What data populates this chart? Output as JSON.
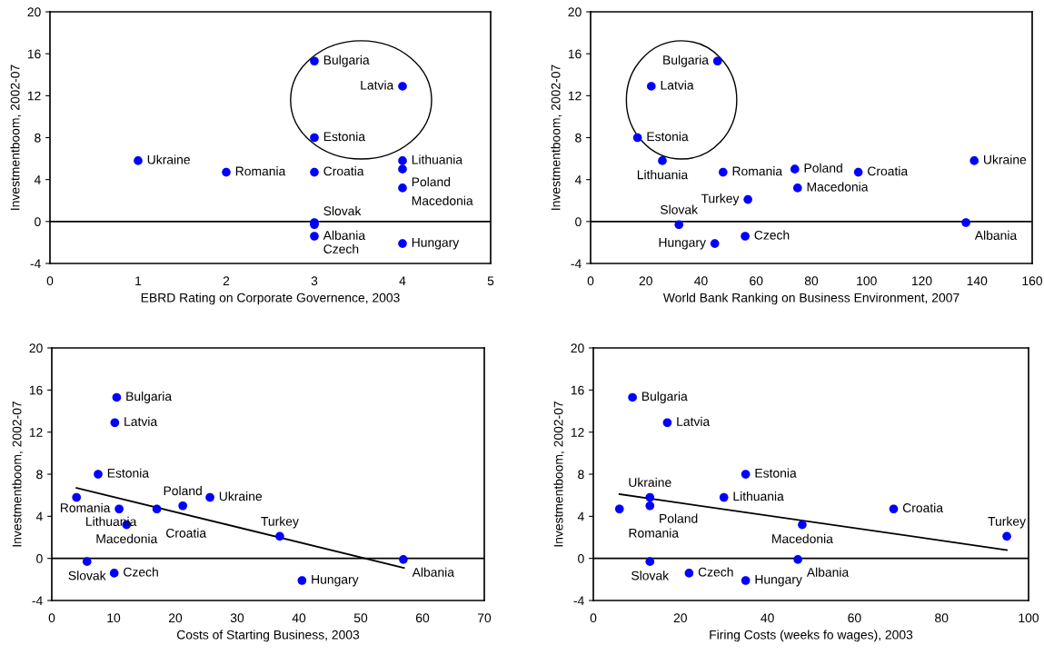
{
  "chart_data": [
    {
      "type": "scatter",
      "xlabel": "EBRD Rating on Corporate Governence, 2003",
      "ylabel": "Investmentboom, 2002-07",
      "x": [
        3,
        4,
        3,
        4,
        1,
        4,
        2,
        3,
        4,
        3,
        3,
        3,
        4
      ],
      "values": [
        15.3,
        12.9,
        8.0,
        5.8,
        5.8,
        5.0,
        4.7,
        4.7,
        3.2,
        -0.1,
        -0.3,
        -1.4,
        -2.1
      ],
      "color": "#0000ff",
      "marker": "circle",
      "annotations": [
        {
          "text": "Bulgaria",
          "x": 3,
          "y": 15.3
        },
        {
          "text": "Latvia",
          "x": 4,
          "y": 12.9
        },
        {
          "text": "Estonia",
          "x": 3,
          "y": 8.0
        },
        {
          "text": "Lithuania",
          "x": 4,
          "y": 5.8
        },
        {
          "text": "Ukraine",
          "x": 1,
          "y": 5.8
        },
        {
          "text": "Poland",
          "x": 4,
          "y": 5.0
        },
        {
          "text": "Romania",
          "x": 2,
          "y": 4.7
        },
        {
          "text": "Croatia",
          "x": 3,
          "y": 4.7
        },
        {
          "text": "Macedonia",
          "x": 4,
          "y": 3.2
        },
        {
          "text": "Albania",
          "x": 3,
          "y": -0.1
        },
        {
          "text": "Slovak",
          "x": 3,
          "y": -0.3
        },
        {
          "text": "Czech",
          "x": 3,
          "y": -1.4
        },
        {
          "text": "Hungary",
          "x": 4,
          "y": -2.1
        }
      ],
      "xlim": [
        0,
        5
      ],
      "xticks": [
        0,
        1,
        2,
        3,
        4,
        5
      ],
      "ylim": [
        -4,
        20
      ],
      "yticks": [
        -4,
        0,
        4,
        8,
        12,
        16,
        20
      ],
      "ref_lines": [
        {
          "axis": "y",
          "value": 0,
          "color": "#000000"
        }
      ],
      "grid": false,
      "legend": false
    },
    {
      "type": "scatter",
      "xlabel": "World Bank Ranking on Business Environment, 2007",
      "ylabel": "Investmentboom, 2002-07",
      "x": [
        46,
        22,
        17,
        26,
        139,
        74,
        48,
        97,
        75,
        57,
        136,
        32,
        56,
        45
      ],
      "values": [
        15.3,
        12.9,
        8.0,
        5.8,
        5.8,
        5.0,
        4.7,
        4.7,
        3.2,
        2.1,
        -0.1,
        -0.3,
        -1.4,
        -2.1
      ],
      "color": "#0000ff",
      "marker": "circle",
      "annotations": [
        {
          "text": "Bulgaria",
          "x": 46,
          "y": 15.3
        },
        {
          "text": "Latvia",
          "x": 22,
          "y": 12.9
        },
        {
          "text": "Estonia",
          "x": 17,
          "y": 8.0
        },
        {
          "text": "Lithuania",
          "x": 26,
          "y": 5.8
        },
        {
          "text": "Ukraine",
          "x": 139,
          "y": 5.8
        },
        {
          "text": "Poland",
          "x": 74,
          "y": 5.0
        },
        {
          "text": "Romania",
          "x": 48,
          "y": 4.7
        },
        {
          "text": "Croatia",
          "x": 97,
          "y": 4.7
        },
        {
          "text": "Macedonia",
          "x": 75,
          "y": 3.2
        },
        {
          "text": "Turkey",
          "x": 57,
          "y": 2.1
        },
        {
          "text": "Albania",
          "x": 136,
          "y": -0.1
        },
        {
          "text": "Slovak",
          "x": 32,
          "y": -0.3
        },
        {
          "text": "Czech",
          "x": 56,
          "y": -1.4
        },
        {
          "text": "Hungary",
          "x": 45,
          "y": -2.1
        }
      ],
      "xlim": [
        0,
        160
      ],
      "xticks": [
        0,
        20,
        40,
        60,
        80,
        100,
        120,
        140,
        160
      ],
      "ylim": [
        -4,
        20
      ],
      "yticks": [
        -4,
        0,
        4,
        8,
        12,
        16,
        20
      ],
      "ref_lines": [
        {
          "axis": "y",
          "value": 0,
          "color": "#000000"
        }
      ],
      "grid": false,
      "legend": false
    },
    {
      "type": "scatter",
      "xlabel": "Costs of Starting Business, 2003",
      "ylabel": "Investmentboom, 2002-07",
      "x": [
        10.5,
        10.2,
        7.5,
        4,
        25.6,
        21.2,
        10.9,
        17,
        12.1,
        36.9,
        56.9,
        5.7,
        10.1,
        40.5
      ],
      "values": [
        15.3,
        12.9,
        8.0,
        5.8,
        5.8,
        5.0,
        4.7,
        4.7,
        3.2,
        2.1,
        -0.1,
        -0.3,
        -1.4,
        -2.1
      ],
      "color": "#0000ff",
      "marker": "circle",
      "series": [
        {
          "type": "line",
          "x": [
            4,
            57
          ],
          "values": [
            6.7,
            -0.9
          ],
          "color": "#000000",
          "marker": "none"
        }
      ],
      "annotations": [
        {
          "text": "Bulgaria",
          "x": 10.5,
          "y": 15.3
        },
        {
          "text": "Latvia",
          "x": 10.2,
          "y": 12.9
        },
        {
          "text": "Estonia",
          "x": 7.5,
          "y": 8.0
        },
        {
          "text": "Lithuania",
          "x": 4,
          "y": 5.8
        },
        {
          "text": "Ukraine",
          "x": 25.6,
          "y": 5.8
        },
        {
          "text": "Poland",
          "x": 21.2,
          "y": 5.0
        },
        {
          "text": "Romania",
          "x": 10.9,
          "y": 4.7
        },
        {
          "text": "Croatia",
          "x": 17,
          "y": 4.7
        },
        {
          "text": "Macedonia",
          "x": 12.1,
          "y": 3.2
        },
        {
          "text": "Turkey",
          "x": 36.9,
          "y": 2.1
        },
        {
          "text": "Albania",
          "x": 56.9,
          "y": -0.1
        },
        {
          "text": "Slovak",
          "x": 5.7,
          "y": -0.3
        },
        {
          "text": "Czech",
          "x": 10.1,
          "y": -1.4
        },
        {
          "text": "Hungary",
          "x": 40.5,
          "y": -2.1
        }
      ],
      "xlim": [
        0,
        70
      ],
      "xticks": [
        0,
        10,
        20,
        30,
        40,
        50,
        60,
        70
      ],
      "ylim": [
        -4,
        20
      ],
      "yticks": [
        -4,
        0,
        4,
        8,
        12,
        16,
        20
      ],
      "ref_lines": [
        {
          "axis": "y",
          "value": 0,
          "color": "#000000"
        }
      ],
      "grid": false,
      "legend": false
    },
    {
      "type": "scatter",
      "xlabel": "Firing Costs (weeks fo wages), 2003",
      "ylabel": "Investmentboom, 2002-07",
      "x": [
        9,
        17,
        35,
        30,
        13,
        13,
        6,
        69,
        48,
        95,
        47,
        13,
        22,
        35
      ],
      "values": [
        15.3,
        12.9,
        8.0,
        5.8,
        5.8,
        5.0,
        4.7,
        4.7,
        3.2,
        2.1,
        -0.1,
        -0.3,
        -1.4,
        -2.1
      ],
      "color": "#0000ff",
      "marker": "circle",
      "series": [
        {
          "type": "line",
          "x": [
            6,
            95
          ],
          "values": [
            6.1,
            0.8
          ],
          "color": "#000000",
          "marker": "none"
        }
      ],
      "annotations": [
        {
          "text": "Bulgaria",
          "x": 9,
          "y": 15.3
        },
        {
          "text": "Latvia",
          "x": 17,
          "y": 12.9
        },
        {
          "text": "Estonia",
          "x": 35,
          "y": 8.0
        },
        {
          "text": "Lithuania",
          "x": 30,
          "y": 5.8
        },
        {
          "text": "Ukraine",
          "x": 13,
          "y": 5.8
        },
        {
          "text": "Poland",
          "x": 13,
          "y": 5.0
        },
        {
          "text": "Romania",
          "x": 6,
          "y": 4.7
        },
        {
          "text": "Croatia",
          "x": 69,
          "y": 4.7
        },
        {
          "text": "Macedonia",
          "x": 48,
          "y": 3.2
        },
        {
          "text": "Turkey",
          "x": 95,
          "y": 2.1
        },
        {
          "text": "Albania",
          "x": 47,
          "y": -0.1
        },
        {
          "text": "Slovak",
          "x": 13,
          "y": -0.3
        },
        {
          "text": "Czech",
          "x": 22,
          "y": -1.4
        },
        {
          "text": "Hungary",
          "x": 35,
          "y": -2.1
        }
      ],
      "xlim": [
        0,
        100
      ],
      "xticks": [
        0,
        20,
        40,
        60,
        80,
        100
      ],
      "ylim": [
        -4,
        20
      ],
      "yticks": [
        -4,
        0,
        4,
        8,
        12,
        16,
        20
      ],
      "ref_lines": [
        {
          "axis": "y",
          "value": 0,
          "color": "#000000"
        }
      ],
      "grid": false,
      "legend": false
    }
  ]
}
